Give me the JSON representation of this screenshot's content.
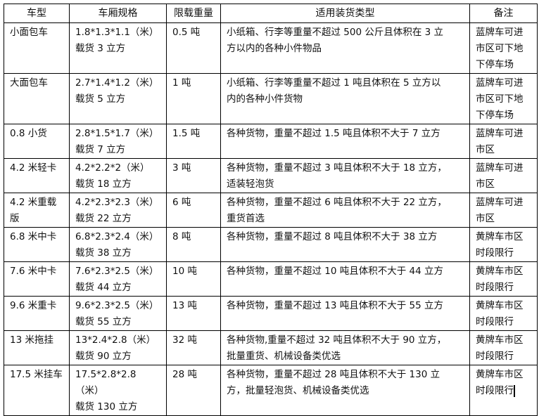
{
  "headers": [
    "车型",
    "车厢规格",
    "限载重量",
    "适用装货类型",
    "备注"
  ],
  "rows": [
    {
      "type": "小面包车",
      "spec": "1.8*1.3*1.1（米）\n载货 3 立方",
      "load": "0.5 吨",
      "cargo": "小纸箱、行李等重量不超过 500 公斤且体积在 3 立\n方以内的各种小件物品",
      "note": "蓝牌车可进\n市区可下地\n下停车场"
    },
    {
      "type": "大面包车",
      "spec": "2.7*1.4*1.2（米）\n载货 5 立方",
      "load": "1 吨",
      "cargo": "小纸箱、行李等重量不超过 1 吨且体积在 5 立方以\n内的各种小件货物",
      "note": "蓝牌车可进\n市区可下地\n下停车场"
    },
    {
      "type": "0.8 小货",
      "spec": "2.8*1.5*1.7（米）\n载货 7 立方",
      "load": "1.5 吨",
      "cargo": "各种货物，重量不超过 1.5 吨且体积不大于 7 立方",
      "note": "蓝牌车可进\n市区"
    },
    {
      "type": "4.2 米轻卡",
      "spec": "4.2*2.2*2（米）\n载货 18 立方",
      "load": "3 吨",
      "cargo": "各种货物，重量不超过 3 吨且体积不大于 18 立方，\n适装轻泡货",
      "note": "蓝牌车可进\n市区"
    },
    {
      "type": "4.2 米重载\n版",
      "spec": "4.2*2.3*2.3（米）\n载货 22 立方",
      "load": "6 吨",
      "cargo": "各种货物，重量不超过 6 吨且体积不大于 22 立方，\n重货首选",
      "note": "蓝牌车可进\n市区"
    },
    {
      "type": "6.8 米中卡",
      "spec": "6.8*2.3*2.4（米）\n载货 38 立方",
      "load": "8 吨",
      "cargo": "各种货物，重量不超过 8 吨且体积不大于 38 立方",
      "note": "黄牌车市区\n时段限行"
    },
    {
      "type": "7.6 米中卡",
      "spec": "7.6*2.3*2.5（米）\n载货 44 立方",
      "load": "10 吨",
      "cargo": "各种货物，重量不超过 10 吨且体积不大于 44 立方",
      "note": "黄牌车市区\n时段限行"
    },
    {
      "type": "9.6 米重卡",
      "spec": "9.6*2.3*2.5（米）\n载货 55 立方",
      "load": "13 吨",
      "cargo": "各种货物，重量不超过 13 吨且体积不大于 55 立方",
      "note": "黄牌车市区\n时段限行"
    },
    {
      "type": "13 米拖挂",
      "spec": "13*2.4*2.8（米）\n载货 90 立方",
      "load": "32 吨",
      "cargo": "各种货物,重量不超过 32 吨且体积不大于 90 立方，\n批量重货、机械设备类优选",
      "note": "黄牌车市区\n时段限行"
    },
    {
      "type": "17.5 米挂车",
      "spec": "17.5*2.8*2.8（米）\n载货 130 立方",
      "load": "28 吨",
      "cargo": "各种货物，重量不超过 28 吨且体积不大于 130 立\n方，批量轻泡货、机械设备类优选",
      "note": "黄牌车市区\n时段限行"
    }
  ]
}
